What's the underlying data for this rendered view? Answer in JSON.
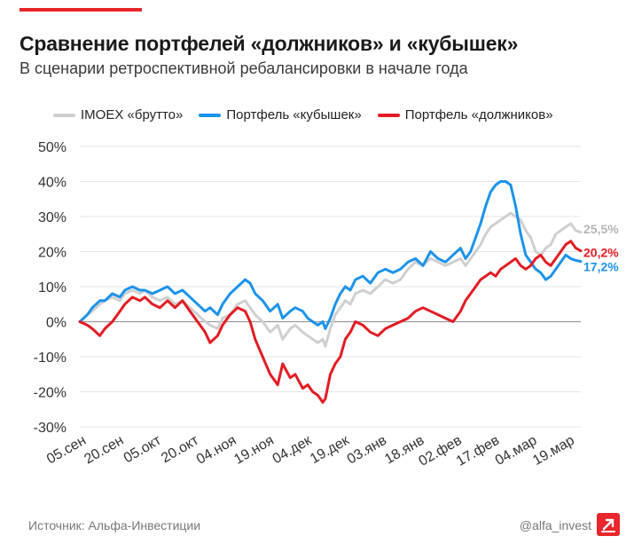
{
  "header": {
    "title": "Сравнение портфелей «должников» и «кубышек»",
    "subtitle": "В сценарии ретроспективной ребалансировки в начале года"
  },
  "footer": {
    "source": "Источник: Альфа-Инвестиции",
    "handle": "@alfa_invest",
    "logo_icon": "alfa-logo-icon"
  },
  "colors": {
    "accent": "#e8262b",
    "imoex": "#cfcfcf",
    "savers": "#1c93ea",
    "debtors": "#e31b23",
    "grid": "#e6e6e6",
    "zero": "#9a9a9a"
  },
  "chart_data": {
    "type": "line",
    "title": "Сравнение портфелей «должников» и «кубышек»",
    "subtitle": "В сценарии ретроспективной ребалансировки в начале года",
    "x_unit": "days since 05.сен",
    "ylim": [
      -30,
      50
    ],
    "y_ticks": [
      50,
      40,
      30,
      20,
      10,
      0,
      -10,
      -20,
      -30
    ],
    "y_tick_labels": [
      "50%",
      "40%",
      "30%",
      "20%",
      "10%",
      "0%",
      "-10%",
      "-20%",
      "-30%"
    ],
    "x_ticks": [
      0,
      15,
      30,
      45,
      60,
      75,
      90,
      105,
      120,
      135,
      150,
      165,
      180,
      195
    ],
    "x_tick_labels": [
      "05.сен",
      "20.сен",
      "05.окт",
      "20.окт",
      "04.ноя",
      "19.ноя",
      "04.дек",
      "19.дек",
      "03.янв",
      "18.янв",
      "02.фев",
      "17.фев",
      "04.мар",
      "19.мар"
    ],
    "series": [
      {
        "name": "IMOEX «брутто»",
        "color": "#cfcfcf",
        "end_label": "25,5%",
        "x": [
          0,
          3,
          5,
          8,
          10,
          13,
          16,
          18,
          21,
          24,
          26,
          29,
          32,
          35,
          38,
          41,
          44,
          47,
          50,
          52,
          55,
          57,
          60,
          63,
          66,
          68,
          70,
          73,
          76,
          79,
          81,
          84,
          86,
          89,
          91,
          93,
          95,
          97,
          98,
          100,
          102,
          104,
          106,
          108,
          110,
          113,
          116,
          119,
          122,
          125,
          128,
          131,
          134,
          137,
          140,
          143,
          146,
          149,
          152,
          154,
          156,
          158,
          160,
          162,
          164,
          166,
          168,
          170,
          172,
          174,
          176,
          178,
          180,
          182,
          184,
          186,
          188,
          190,
          192,
          194,
          196,
          198,
          200
        ],
        "y": [
          0,
          2,
          3,
          5,
          6,
          7,
          6,
          8,
          9,
          8,
          9,
          7,
          6,
          7,
          5,
          6,
          4,
          2,
          0,
          -1,
          -2,
          1,
          2,
          5,
          6,
          4,
          2,
          0,
          -3,
          -1,
          -5,
          -2,
          -1,
          -3,
          -4,
          -5,
          -6,
          -5,
          -7,
          -2,
          2,
          4,
          6,
          5,
          8,
          9,
          8,
          10,
          12,
          11,
          12,
          15,
          17,
          16,
          18,
          17,
          16,
          17,
          18,
          16,
          18,
          20,
          22,
          25,
          27,
          28,
          29,
          30,
          31,
          30,
          29,
          26,
          24,
          20,
          19,
          21,
          22,
          25,
          26,
          27,
          28,
          26,
          25.5
        ]
      },
      {
        "name": "Портфель «кубышек»",
        "color": "#1c93ea",
        "end_label": "17,2%",
        "x": [
          0,
          3,
          5,
          8,
          10,
          13,
          16,
          18,
          21,
          24,
          26,
          29,
          32,
          35,
          38,
          41,
          44,
          47,
          50,
          52,
          55,
          57,
          60,
          63,
          66,
          68,
          70,
          73,
          76,
          79,
          81,
          84,
          86,
          89,
          91,
          93,
          95,
          97,
          98,
          100,
          102,
          104,
          106,
          108,
          110,
          113,
          116,
          119,
          122,
          125,
          128,
          131,
          134,
          137,
          140,
          143,
          146,
          149,
          152,
          154,
          156,
          158,
          160,
          162,
          164,
          166,
          168,
          170,
          172,
          174,
          176,
          178,
          180,
          182,
          184,
          186,
          188,
          190,
          192,
          194,
          196,
          198,
          200
        ],
        "y": [
          0,
          2,
          4,
          6,
          6,
          8,
          7,
          9,
          10,
          9,
          9,
          8,
          9,
          10,
          8,
          9,
          7,
          5,
          3,
          4,
          2,
          5,
          8,
          10,
          12,
          11,
          8,
          6,
          3,
          5,
          1,
          3,
          4,
          3,
          1,
          0,
          -1,
          0,
          -2,
          1,
          5,
          8,
          10,
          9,
          12,
          13,
          11,
          14,
          15,
          14,
          15,
          17,
          18,
          16,
          20,
          18,
          17,
          19,
          21,
          18,
          20,
          24,
          28,
          33,
          37,
          39,
          40,
          40,
          39,
          33,
          25,
          19,
          17,
          15,
          14,
          12,
          13,
          15,
          17,
          19,
          18,
          17.5,
          17.2
        ]
      },
      {
        "name": "Портфель «должников»",
        "color": "#e31b23",
        "end_label": "20,2%",
        "x": [
          0,
          3,
          5,
          8,
          10,
          13,
          16,
          18,
          21,
          24,
          26,
          29,
          32,
          35,
          38,
          41,
          44,
          47,
          50,
          52,
          55,
          57,
          60,
          63,
          66,
          68,
          70,
          73,
          76,
          79,
          81,
          84,
          86,
          89,
          91,
          93,
          95,
          97,
          98,
          100,
          102,
          104,
          106,
          108,
          110,
          113,
          116,
          119,
          122,
          125,
          128,
          131,
          134,
          137,
          140,
          143,
          146,
          149,
          152,
          154,
          156,
          158,
          160,
          162,
          164,
          166,
          168,
          170,
          172,
          174,
          176,
          178,
          180,
          182,
          184,
          186,
          188,
          190,
          192,
          194,
          196,
          198,
          200
        ],
        "y": [
          0,
          -1,
          -2,
          -4,
          -2,
          0,
          3,
          5,
          7,
          6,
          7,
          5,
          4,
          6,
          4,
          6,
          3,
          0,
          -3,
          -6,
          -4,
          -1,
          2,
          4,
          3,
          0,
          -5,
          -10,
          -15,
          -18,
          -12,
          -16,
          -15,
          -19,
          -18,
          -20,
          -21,
          -23,
          -22,
          -15,
          -12,
          -10,
          -5,
          -3,
          0,
          -1,
          -3,
          -4,
          -2,
          -1,
          0,
          1,
          3,
          4,
          3,
          2,
          1,
          0,
          3,
          6,
          8,
          10,
          12,
          13,
          14,
          13,
          15,
          16,
          17,
          18,
          16,
          15,
          16,
          18,
          19,
          17,
          16,
          18,
          20,
          22,
          23,
          21,
          20.2
        ]
      }
    ]
  }
}
